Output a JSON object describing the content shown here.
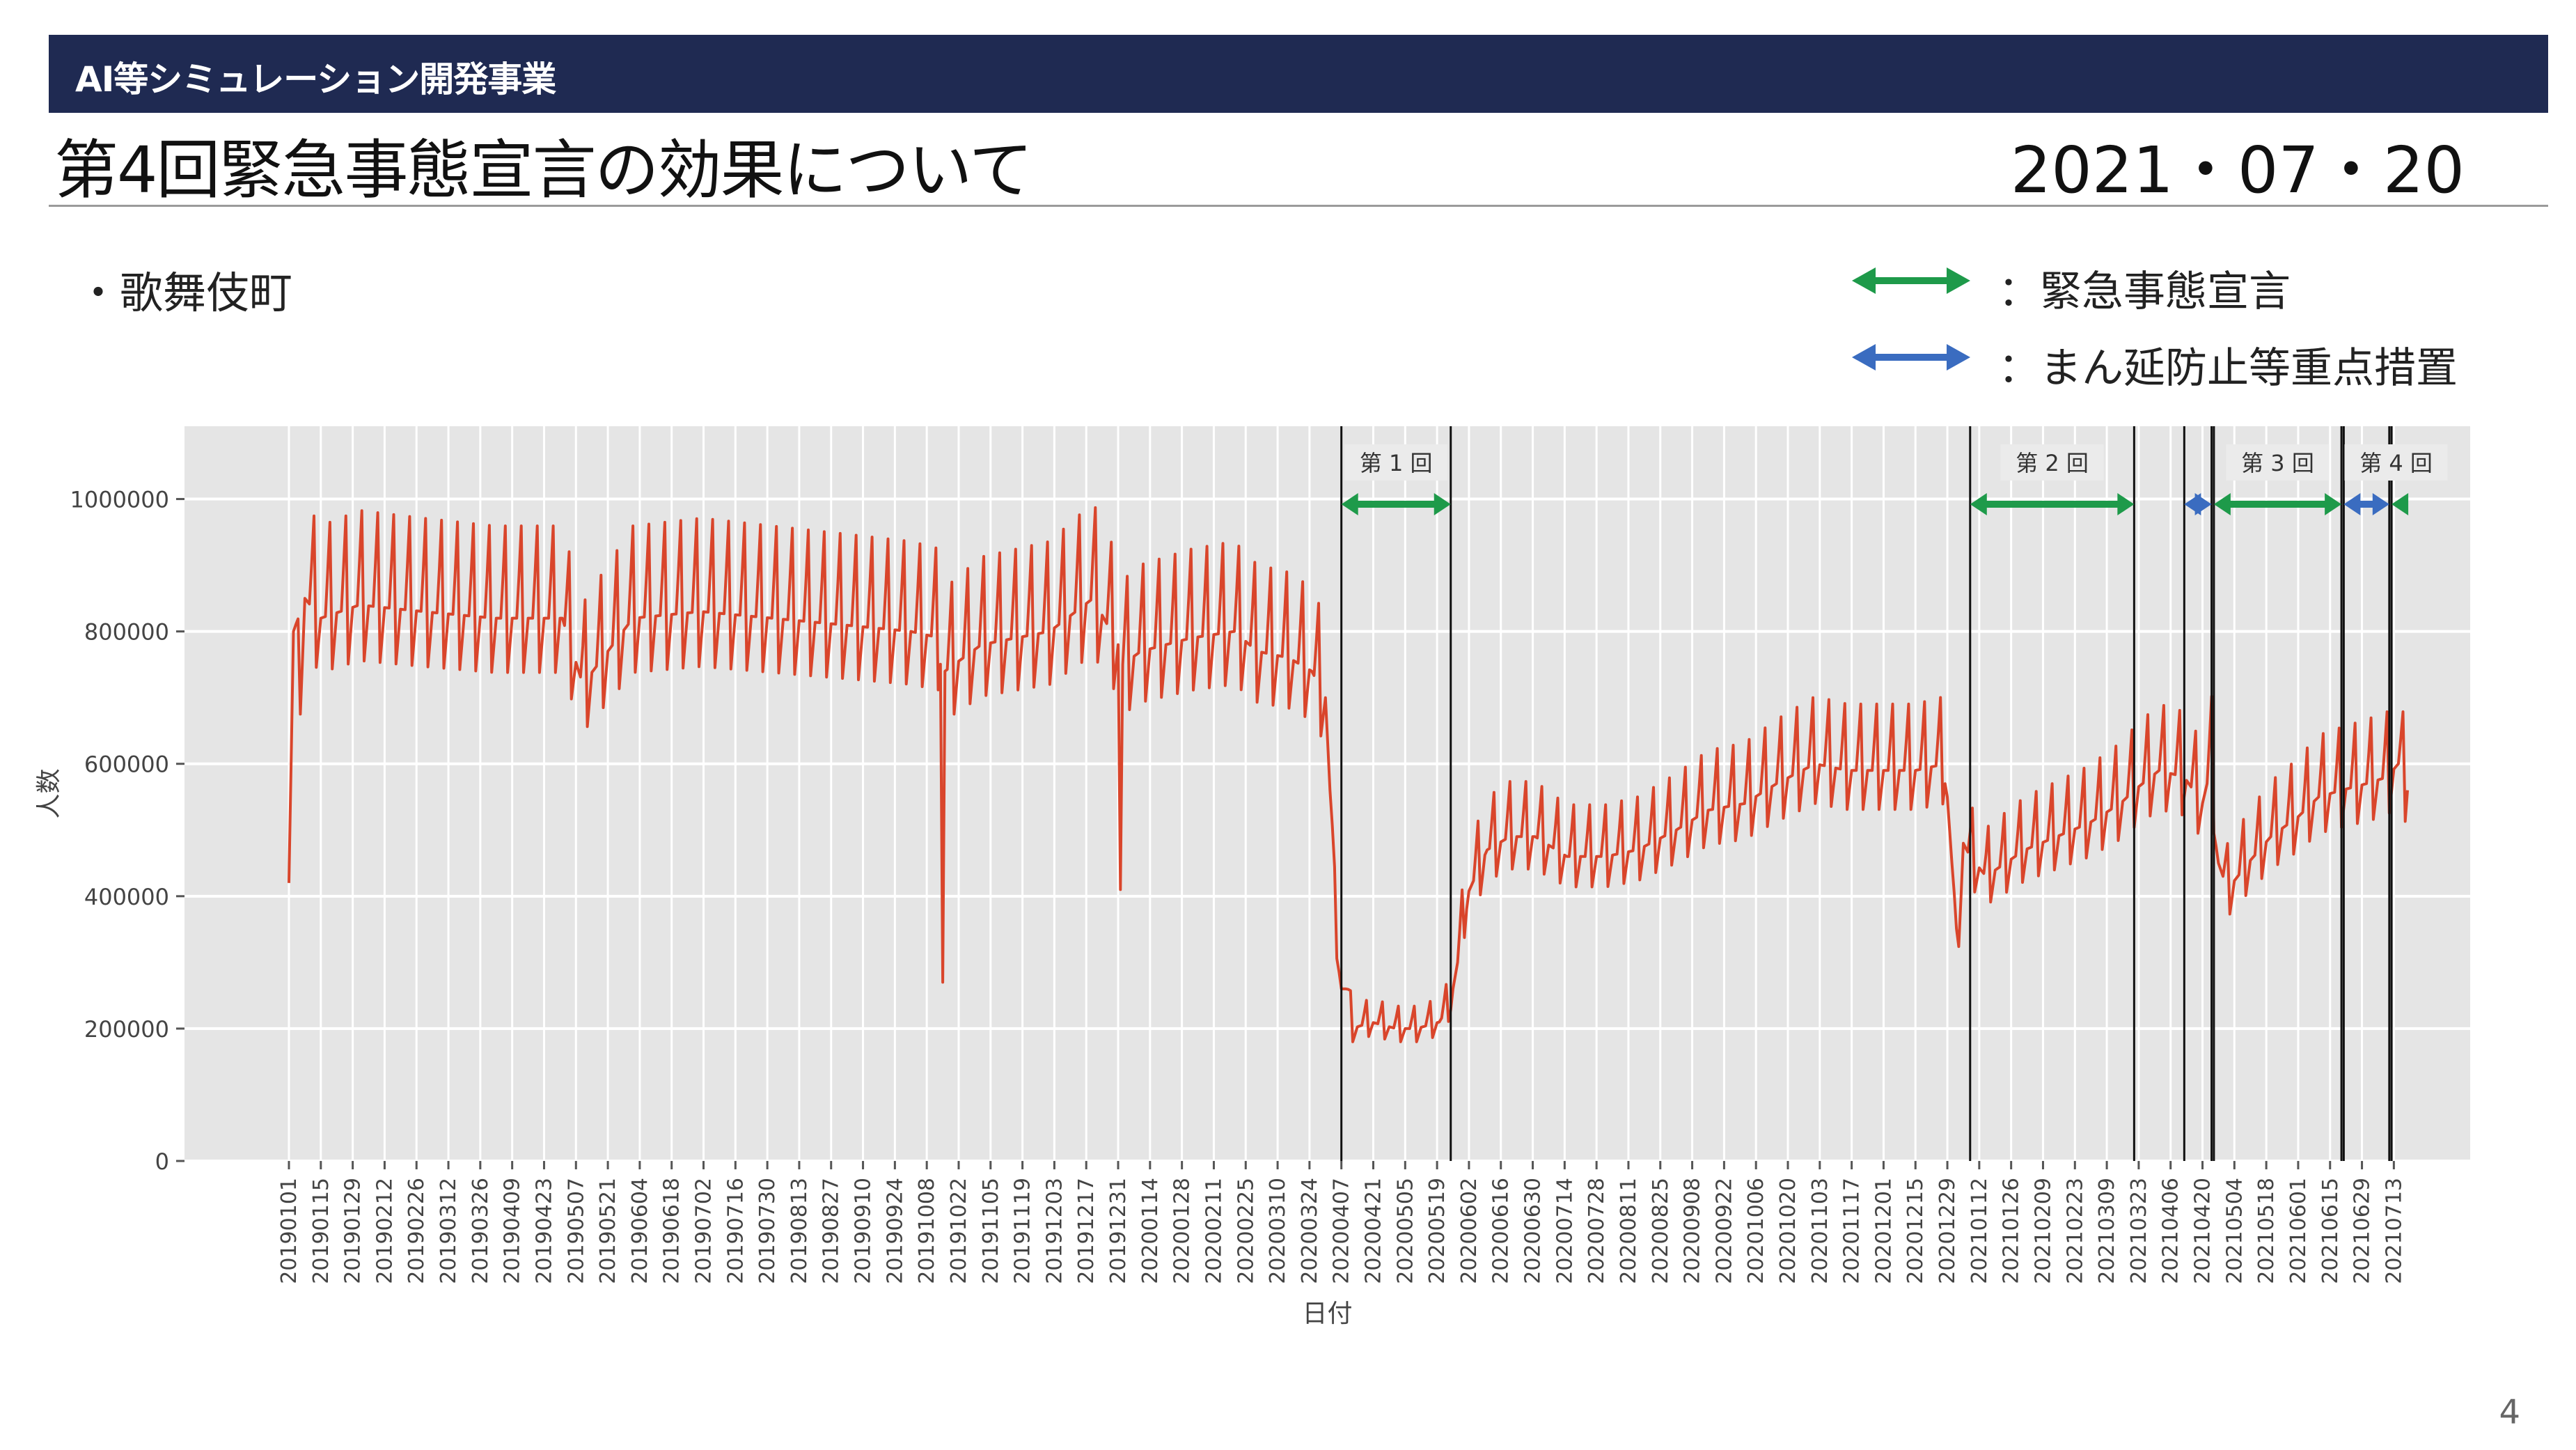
{
  "header": {
    "label": "AI等シミュレーション開発事業"
  },
  "title": "第4回緊急事態宣言の効果について",
  "date": "2021・07・20",
  "subtitle": "・歌舞伎町",
  "legend": {
    "emergency": {
      "label": "：緊急事態宣言",
      "color": "#1e9a4a"
    },
    "priority": {
      "label": "：まん延防止等重点措置",
      "color": "#3a6cc0"
    }
  },
  "page_number": "4",
  "chart_data": {
    "type": "line",
    "xlabel": "日付",
    "ylabel": "人数",
    "ylim": [
      0,
      1110000
    ],
    "yticks": [
      0,
      200000,
      400000,
      600000,
      800000,
      1000000
    ],
    "ytick_labels": [
      "0",
      "200000",
      "400000",
      "600000",
      "800000",
      "1000000"
    ],
    "grid": true,
    "line_color": "#d9452b",
    "x_start": "2019-01-01",
    "x_end": "2021-07-19",
    "x_tick_labels": [
      "20190101",
      "20190115",
      "20190129",
      "20190212",
      "20190226",
      "20190312",
      "20190326",
      "20190409",
      "20190423",
      "20190507",
      "20190521",
      "20190604",
      "20190618",
      "20190702",
      "20190716",
      "20190730",
      "20190813",
      "20190827",
      "20190910",
      "20190924",
      "20191008",
      "20191022",
      "20191105",
      "20191119",
      "20191203",
      "20191217",
      "20191231",
      "20200114",
      "20200128",
      "20200211",
      "20200225",
      "20200310",
      "20200324",
      "20200407",
      "20200421",
      "20200505",
      "20200519",
      "20200602",
      "20200616",
      "20200630",
      "20200714",
      "20200728",
      "20200811",
      "20200825",
      "20200908",
      "20200922",
      "20201006",
      "20201020",
      "20201103",
      "20201117",
      "20201201",
      "20201215",
      "20201229",
      "20210112",
      "20210126",
      "20210209",
      "20210223",
      "20210309",
      "20210323",
      "20210406",
      "20210420",
      "20210504",
      "20210518",
      "20210601",
      "20210615",
      "20210629",
      "20210713"
    ],
    "periods": [
      {
        "label": "第 1 回",
        "start": "2020-04-07",
        "end": "2020-05-25",
        "kind": "emergency"
      },
      {
        "label": "第 2 回",
        "start": "2021-01-08",
        "end": "2021-03-21",
        "kind": "emergency"
      },
      {
        "label": "",
        "start": "2021-04-12",
        "end": "2021-04-24",
        "kind": "priority"
      },
      {
        "label": "第 3 回",
        "start": "2021-04-25",
        "end": "2021-06-20",
        "kind": "emergency"
      },
      {
        "label": "",
        "start": "2021-06-21",
        "end": "2021-07-11",
        "kind": "priority"
      },
      {
        "label": "第 4 回",
        "start": "2021-07-12",
        "end": "",
        "kind": "emergency"
      }
    ],
    "series": [
      {
        "name": "",
        "x": [
          "2019-01-01",
          "2019-01-03",
          "2019-01-05",
          "2019-01-08",
          "2019-01-15",
          "2019-02-01",
          "2019-03-01",
          "2019-04-01",
          "2019-05-01",
          "2019-05-10",
          "2019-06-01",
          "2019-07-01",
          "2019-08-01",
          "2019-09-01",
          "2019-10-01",
          "2019-10-14",
          "2019-10-15",
          "2019-10-16",
          "2019-11-01",
          "2019-12-01",
          "2019-12-20",
          "2019-12-31",
          "2020-01-01",
          "2020-01-02",
          "2020-01-10",
          "2020-02-01",
          "2020-02-20",
          "2020-03-01",
          "2020-03-15",
          "2020-03-25",
          "2020-03-31",
          "2020-04-02",
          "2020-04-04",
          "2020-04-07",
          "2020-04-09",
          "2020-04-12",
          "2020-04-20",
          "2020-05-01",
          "2020-05-10",
          "2020-05-20",
          "2020-05-25",
          "2020-05-28",
          "2020-06-01",
          "2020-06-10",
          "2020-06-20",
          "2020-07-01",
          "2020-07-15",
          "2020-08-01",
          "2020-08-15",
          "2020-09-01",
          "2020-09-15",
          "2020-10-01",
          "2020-10-15",
          "2020-11-01",
          "2020-11-15",
          "2020-12-01",
          "2020-12-15",
          "2020-12-28",
          "2020-12-31",
          "2021-01-02",
          "2021-01-05",
          "2021-01-08",
          "2021-01-15",
          "2021-02-01",
          "2021-02-15",
          "2021-03-01",
          "2021-03-15",
          "2021-03-21",
          "2021-04-01",
          "2021-04-12",
          "2021-04-20",
          "2021-04-24",
          "2021-04-27",
          "2021-05-01",
          "2021-05-10",
          "2021-05-20",
          "2021-06-01",
          "2021-06-10",
          "2021-06-20",
          "2021-07-01",
          "2021-07-10",
          "2021-07-15",
          "2021-07-19"
        ],
        "y": [
          420000,
          800000,
          700000,
          850000,
          820000,
          840000,
          830000,
          820000,
          820000,
          720000,
          820000,
          830000,
          820000,
          810000,
          800000,
          790000,
          270000,
          740000,
          780000,
          800000,
          850000,
          780000,
          410000,
          750000,
          770000,
          790000,
          800000,
          770000,
          760000,
          740000,
          700000,
          560000,
          380000,
          260000,
          260000,
          200000,
          210000,
          200000,
          200000,
          210000,
          240000,
          300000,
          400000,
          470000,
          490000,
          490000,
          460000,
          460000,
          470000,
          500000,
          530000,
          540000,
          570000,
          600000,
          590000,
          590000,
          590000,
          600000,
          450000,
          300000,
          480000,
          460000,
          430000,
          470000,
          490000,
          510000,
          540000,
          560000,
          590000,
          580000,
          540000,
          600000,
          450000,
          410000,
          450000,
          490000,
          520000,
          550000,
          560000,
          570000,
          580000,
          600000,
          560000
        ]
      }
    ]
  }
}
